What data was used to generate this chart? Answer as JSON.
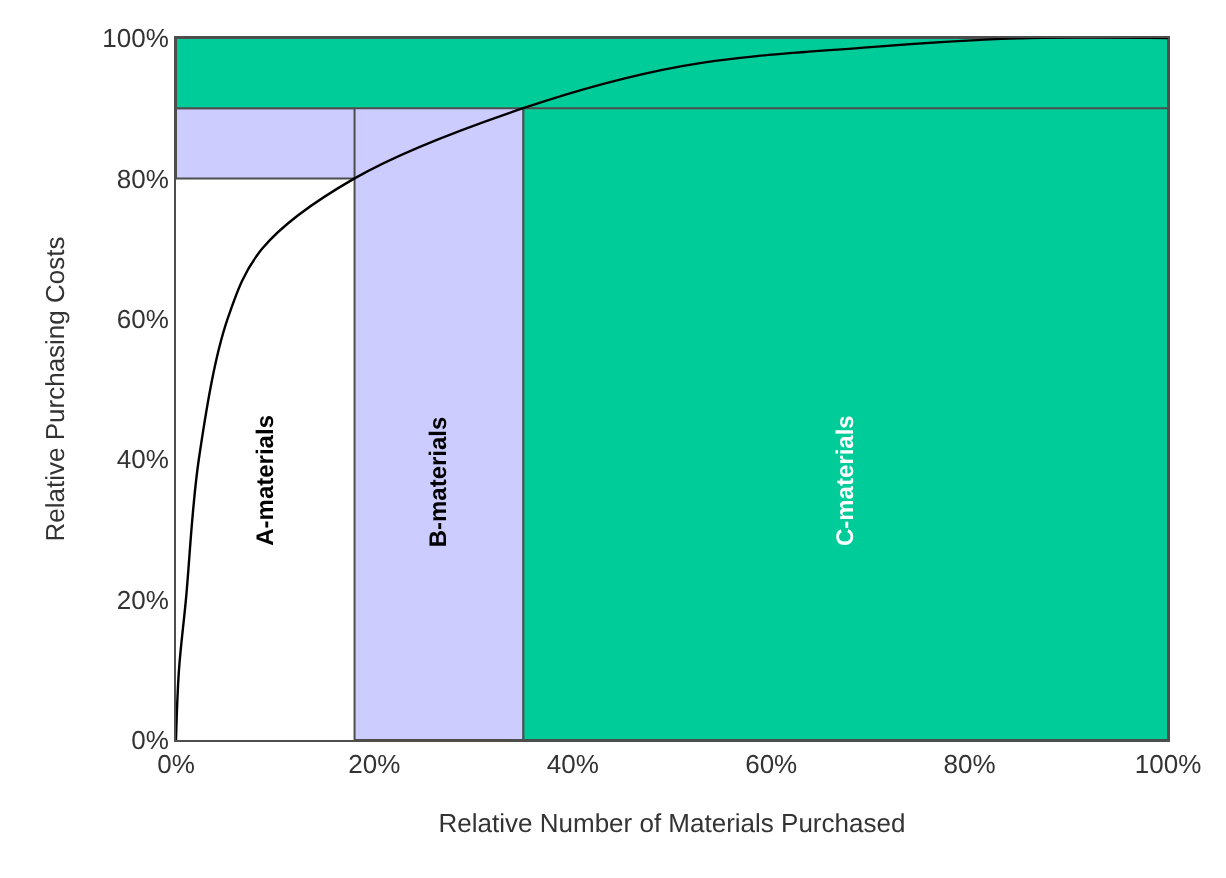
{
  "chart_data": {
    "type": "line",
    "xlabel": "Relative Number of Materials Purchased",
    "ylabel": "Relative Purchasing Costs",
    "x": [
      0,
      0.3,
      1,
      2.3,
      5.2,
      8.7,
      18,
      35,
      51,
      70,
      86,
      100
    ],
    "series": [
      {
        "color": "#000000",
        "values": [
          0,
          10,
          20,
          40,
          60,
          70,
          80,
          90,
          96,
          98.7,
          100,
          100
        ]
      }
    ],
    "xlim": [
      0,
      100
    ],
    "ylim": [
      0,
      100
    ],
    "xticks": [
      {
        "value": 0,
        "label": "0%"
      },
      {
        "value": 20,
        "label": "20%"
      },
      {
        "value": 40,
        "label": "40%"
      },
      {
        "value": 60,
        "label": "60%"
      },
      {
        "value": 80,
        "label": "80%"
      },
      {
        "value": 100,
        "label": "100%"
      }
    ],
    "yticks": [
      {
        "value": 0,
        "label": "0%"
      },
      {
        "value": 20,
        "label": "20%"
      },
      {
        "value": 40,
        "label": "40%"
      },
      {
        "value": 60,
        "label": "60%"
      },
      {
        "value": 80,
        "label": "80%"
      },
      {
        "value": 100,
        "label": "100%"
      }
    ],
    "bands": [
      {
        "axis": "y",
        "from": 80,
        "to": 90,
        "color": "#ccccff"
      },
      {
        "axis": "x",
        "from": 35,
        "to": 100,
        "color": "#00cc99",
        "label": "C-materials"
      },
      {
        "axis": "x",
        "from": 18,
        "to": 35,
        "color": "#ccccff",
        "label": "B-materials"
      },
      {
        "axis": "y",
        "from": 90,
        "to": 100,
        "color": "#00cc99"
      }
    ],
    "annotations": [
      "A-materials"
    ],
    "grid": false,
    "legend": false,
    "marker": "none",
    "line_style": "solid"
  }
}
